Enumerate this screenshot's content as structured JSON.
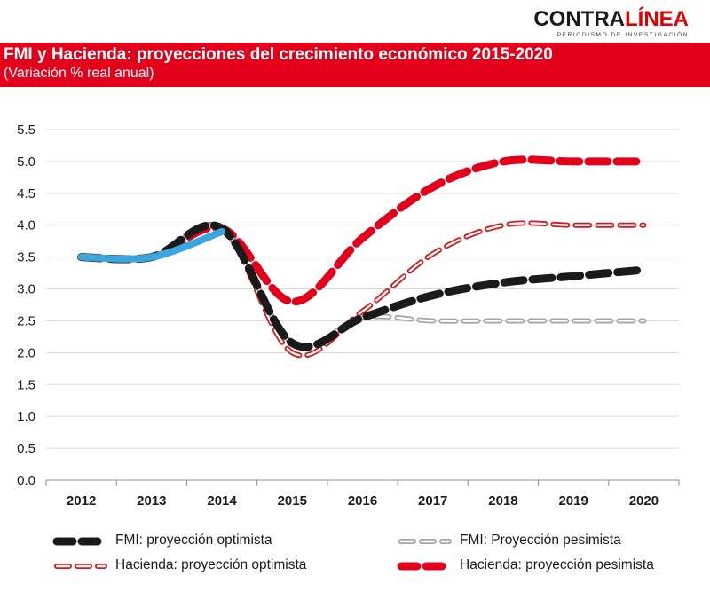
{
  "header": {
    "logo_main": "CONTRA",
    "logo_accent": "LÍNEA",
    "logo_tagline": "PERIODISMO DE INVESTIGACIÓN",
    "title": "FMI y Hacienda: proyecciones del crecimiento económico 2015-2020",
    "subtitle": "(Variación % real anual)"
  },
  "colors": {
    "band": "#e2001a",
    "fmi_opt": "#1a1a1a",
    "fmi_pes": "#a6a6a6",
    "hac_opt": "#d7191c",
    "hac_pes": "#e2001a",
    "historic": "#3aa6dd"
  },
  "chart_data": {
    "type": "line",
    "title": "FMI y Hacienda: proyecciones del crecimiento económico 2015-2020",
    "subtitle": "(Variación % real anual)",
    "categories": [
      "2012",
      "2013",
      "2014",
      "2015",
      "2016",
      "2017",
      "2018",
      "2019",
      "2020"
    ],
    "y_ticks": [
      "0.0",
      "0.5",
      "1.0",
      "1.5",
      "2.0",
      "2.5",
      "3.0",
      "3.5",
      "4.0",
      "4.5",
      "5.0",
      "5.5"
    ],
    "ylim": [
      0,
      5.5
    ],
    "grid": "horizontal",
    "legend_position": "bottom",
    "series": [
      {
        "name": "Hacienda: proyección pesimista",
        "style": "thick-dash",
        "color": "#e2001a",
        "values": [
          3.5,
          3.5,
          3.95,
          2.8,
          3.8,
          4.6,
          5.0,
          5.0,
          5.0
        ]
      },
      {
        "name": "Hacienda: proyección optimista",
        "style": "outlined-dash",
        "color": "#d7191c",
        "values": [
          3.5,
          3.5,
          3.95,
          2.0,
          2.65,
          3.55,
          4.0,
          4.0,
          4.0
        ]
      },
      {
        "name": "FMI: Proyección pesimista",
        "style": "outlined-dash",
        "color": "#a6a6a6",
        "values": [
          3.5,
          3.5,
          3.95,
          2.15,
          2.55,
          2.5,
          2.5,
          2.5,
          2.5
        ]
      },
      {
        "name": "FMI: proyección optimista",
        "style": "thick-dash",
        "color": "#1a1a1a",
        "values": [
          3.5,
          3.5,
          3.95,
          2.15,
          2.55,
          2.9,
          3.1,
          3.2,
          3.3
        ]
      },
      {
        "name": "",
        "style": "solid",
        "color": "#3aa6dd",
        "values": [
          3.5,
          3.5,
          3.9,
          null,
          null,
          null,
          null,
          null,
          null
        ]
      }
    ],
    "legend": [
      {
        "name": "FMI: proyección optimista",
        "series_index": 3
      },
      {
        "name": "FMI: Proyección pesimista",
        "series_index": 2
      },
      {
        "name": "Hacienda: proyección optimista",
        "series_index": 1
      },
      {
        "name": "Hacienda: proyección pesimista",
        "series_index": 0
      }
    ]
  }
}
